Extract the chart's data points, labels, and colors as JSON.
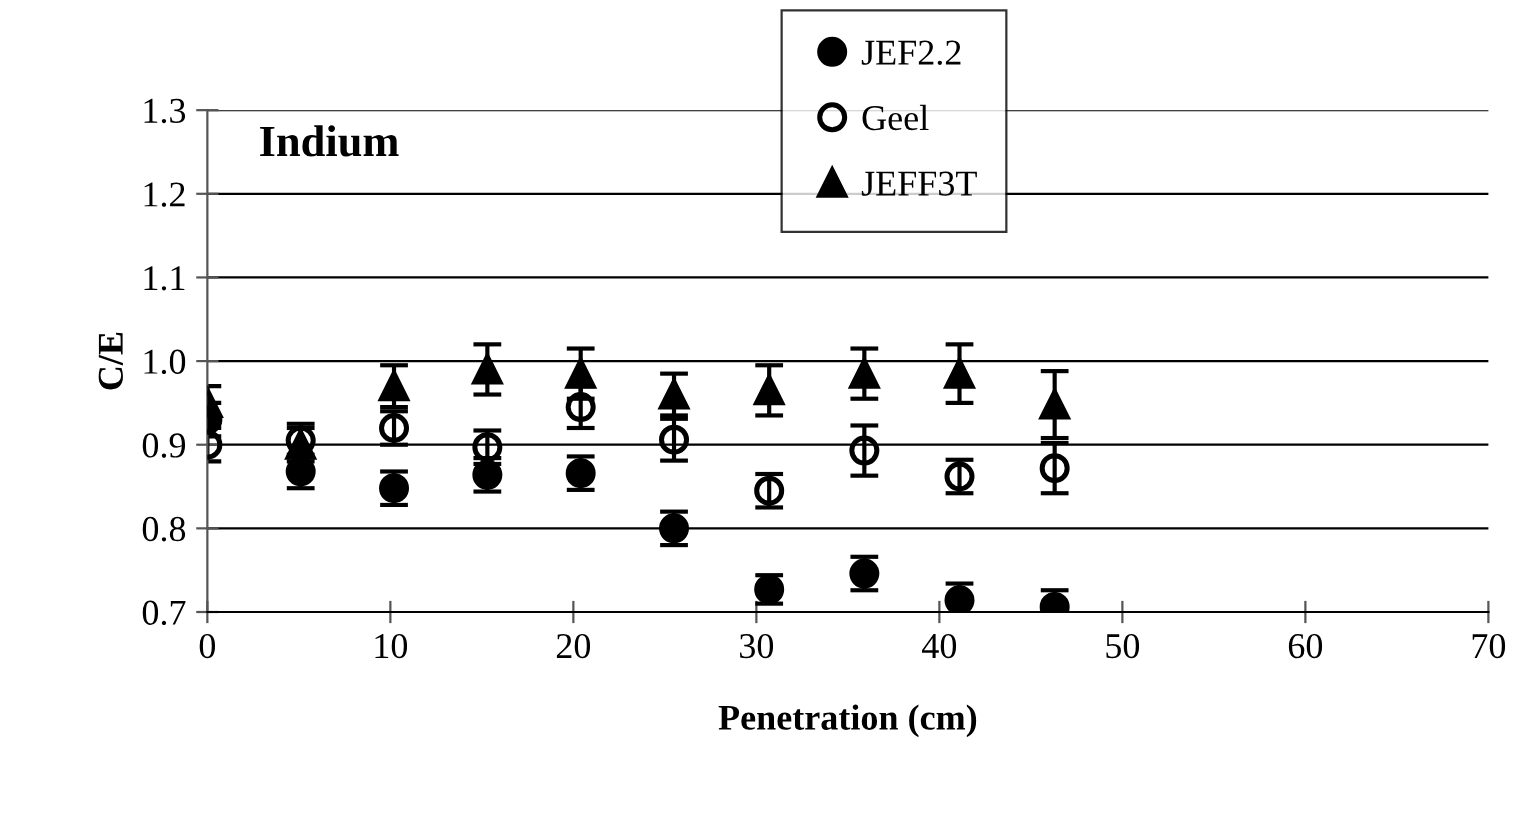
{
  "chart_data": {
    "type": "scatter",
    "title": "Indium",
    "xlabel": "Penetration (cm)",
    "ylabel": "C/E",
    "x": [
      0,
      5.1,
      10.2,
      15.3,
      20.4,
      25.5,
      30.7,
      35.9,
      41.1,
      46.3
    ],
    "series": [
      {
        "name": "JEF2.2",
        "color": "#000000",
        "marker": "circle",
        "values": [
          0.93,
          0.868,
          0.848,
          0.864,
          0.866,
          0.8,
          0.727,
          0.746,
          0.714,
          0.706
        ],
        "errors": [
          0.02,
          0.02,
          0.02,
          0.02,
          0.02,
          0.02,
          0.017,
          0.02,
          0.02,
          0.02
        ]
      },
      {
        "name": "Geel",
        "color": "#000000",
        "marker": "open circle",
        "values": [
          0.9,
          0.905,
          0.92,
          0.897,
          0.945,
          0.906,
          0.845,
          0.893,
          0.862,
          0.872
        ],
        "errors": [
          0.02,
          0.02,
          0.02,
          0.02,
          0.025,
          0.025,
          0.02,
          0.03,
          0.02,
          0.03
        ]
      },
      {
        "name": "JEFF3T",
        "color": "#000000",
        "marker": "triangle",
        "values": [
          0.95,
          0.9,
          0.97,
          0.99,
          0.985,
          0.96,
          0.965,
          0.985,
          0.985,
          0.948
        ],
        "errors": [
          0.02,
          0.02,
          0.025,
          0.03,
          0.03,
          0.025,
          0.03,
          0.03,
          0.035,
          0.04
        ]
      }
    ],
    "xlim": [
      0,
      70
    ],
    "xticks": [
      0,
      10,
      20,
      30,
      40,
      50,
      60,
      70
    ],
    "ylim": [
      0.7,
      1.3
    ],
    "yticks": [
      {
        "value": 0.7,
        "label": "0.7"
      },
      {
        "value": 0.8,
        "label": "0.8"
      },
      {
        "value": 0.9,
        "label": "0.9"
      },
      {
        "value": 1.0,
        "label": "1.0"
      },
      {
        "value": 1.1,
        "label": "1.1"
      },
      {
        "value": 1.2,
        "label": "1.2"
      },
      {
        "value": 1.3,
        "label": "1.3"
      }
    ],
    "grid": "y",
    "legend": "top"
  }
}
